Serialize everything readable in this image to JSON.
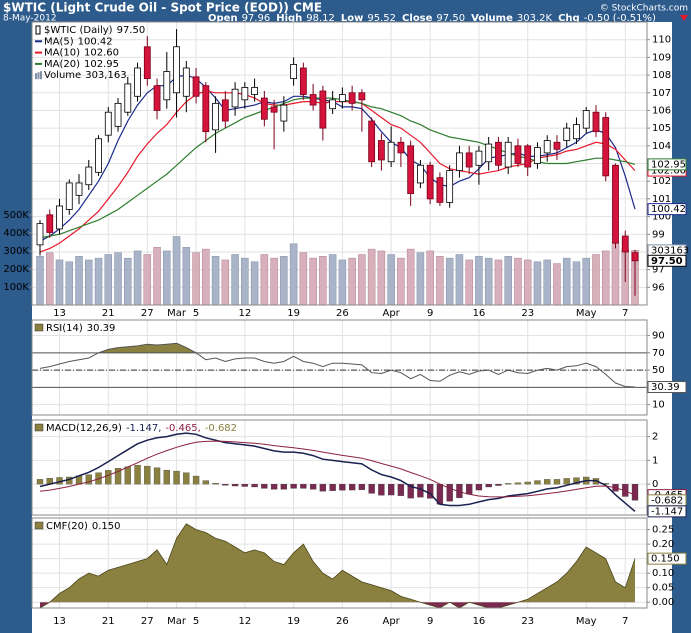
{
  "header": {
    "title": "$WTIC (Light Crude Oil - Spot Price (EOD)) CME",
    "source": "© StockCharts.com",
    "date": "8-May-2012",
    "quote": [
      {
        "label": "Open",
        "value": "97.96"
      },
      {
        "label": "High",
        "value": "98.12"
      },
      {
        "label": "Low",
        "value": "95.52"
      },
      {
        "label": "Close",
        "value": "97.50"
      },
      {
        "label": "Volume",
        "value": "303.2K"
      },
      {
        "label": "Chg",
        "value": "-0.50 (-0.51%)"
      }
    ]
  },
  "chart_data": [
    {
      "type": "candlestick",
      "name": "$WTIC (Daily)",
      "last_label": "97.50",
      "categories": [
        null,
        null,
        "13",
        null,
        null,
        null,
        null,
        "21",
        null,
        null,
        null,
        "27",
        null,
        null,
        "Mar",
        null,
        "5",
        null,
        null,
        null,
        null,
        "12",
        null,
        null,
        null,
        null,
        "19",
        null,
        null,
        null,
        null,
        "26",
        null,
        null,
        null,
        null,
        "Apr",
        null,
        null,
        null,
        "9",
        null,
        null,
        null,
        null,
        "16",
        null,
        null,
        null,
        null,
        "23",
        null,
        null,
        null,
        null,
        null,
        "May",
        null,
        null,
        null,
        "7",
        null
      ],
      "open": [
        98.4,
        100.1,
        99.3,
        100.4,
        101.2,
        101.8,
        102.5,
        104.6,
        105.1,
        105.9,
        106.8,
        109.6,
        107.4,
        106.6,
        107.0,
        106.8,
        107.9,
        107.4,
        104.9,
        106.6,
        106.2,
        106.6,
        106.9,
        106.7,
        106.2,
        105.4,
        107.8,
        108.4,
        106.9,
        107.1,
        106.1,
        106.5,
        107.0,
        107.0,
        105.4,
        104.3,
        103.1,
        104.2,
        104.0,
        101.9,
        102.9,
        102.2,
        100.8,
        102.6,
        103.6,
        102.9,
        103.1,
        104.2,
        102.8,
        104.0,
        104.0,
        103.0,
        103.6,
        104.2,
        104.3,
        104.4,
        105.0,
        105.9,
        105.6,
        102.9,
        98.9,
        97.96
      ],
      "high": [
        99.8,
        100.4,
        101.0,
        102.1,
        102.4,
        103.2,
        104.6,
        106.2,
        106.7,
        107.9,
        108.7,
        110.2,
        107.8,
        109.3,
        110.6,
        108.8,
        108.4,
        107.6,
        106.8,
        107.1,
        107.6,
        107.6,
        107.8,
        107.1,
        106.6,
        106.8,
        109.0,
        108.7,
        107.5,
        107.4,
        107.1,
        107.3,
        107.4,
        107.2,
        105.6,
        104.7,
        105.1,
        104.5,
        104.3,
        103.2,
        103.1,
        102.5,
        102.9,
        104.0,
        104.0,
        104.0,
        104.5,
        104.5,
        104.5,
        104.4,
        104.1,
        104.2,
        104.6,
        104.6,
        105.3,
        105.6,
        106.2,
        106.3,
        105.9,
        103.0,
        99.2,
        98.12
      ],
      "low": [
        97.8,
        98.8,
        99.0,
        100.1,
        100.7,
        101.5,
        102.3,
        104.2,
        104.8,
        105.7,
        106.5,
        107.4,
        105.5,
        106.1,
        105.6,
        105.9,
        106.4,
        104.2,
        103.6,
        105.0,
        105.7,
        106.1,
        106.5,
        105.1,
        103.8,
        104.8,
        107.4,
        106.6,
        106.0,
        104.3,
        105.8,
        106.1,
        106.0,
        104.8,
        102.8,
        102.6,
        102.8,
        102.8,
        100.6,
        101.6,
        100.7,
        100.6,
        100.5,
        102.2,
        102.4,
        101.8,
        102.6,
        102.6,
        102.4,
        102.8,
        102.3,
        102.7,
        103.1,
        103.2,
        103.9,
        104.1,
        104.7,
        104.5,
        102.0,
        98.2,
        96.3,
        95.52
      ],
      "close": [
        99.6,
        99.1,
        100.6,
        101.9,
        101.9,
        102.8,
        104.4,
        105.9,
        106.4,
        107.5,
        108.4,
        107.8,
        106.0,
        108.2,
        109.6,
        108.4,
        106.8,
        104.8,
        106.4,
        105.4,
        107.2,
        107.3,
        107.3,
        105.5,
        105.9,
        106.3,
        108.6,
        106.9,
        106.3,
        105.0,
        106.6,
        106.9,
        106.4,
        106.6,
        103.1,
        103.2,
        104.2,
        103.6,
        101.3,
        102.9,
        101.0,
        100.8,
        102.6,
        103.6,
        102.8,
        103.7,
        104.1,
        102.9,
        104.2,
        103.0,
        102.8,
        103.9,
        104.3,
        103.8,
        105.0,
        105.2,
        106.0,
        104.8,
        102.3,
        98.5,
        98.0,
        97.5
      ],
      "up_color": "#ffffff",
      "down_color": "#d4143c",
      "ylim": [
        95,
        111
      ],
      "yticks": [
        96,
        97,
        98,
        99,
        100,
        101,
        102,
        103,
        104,
        105,
        106,
        107,
        108,
        109,
        110
      ],
      "series": [
        {
          "name": "MA(5)",
          "color": "#1c2a8c",
          "last_label": "100.42",
          "values": [
            98.6,
            98.9,
            99.3,
            99.8,
            100.4,
            101.2,
            102.0,
            103.0,
            104.3,
            105.4,
            106.3,
            107.0,
            107.4,
            107.4,
            107.9,
            108.0,
            107.8,
            107.3,
            106.7,
            106.0,
            106.1,
            106.2,
            106.3,
            106.5,
            106.4,
            106.5,
            106.8,
            106.8,
            106.7,
            106.6,
            106.5,
            106.2,
            106.2,
            106.1,
            105.5,
            104.8,
            104.2,
            103.9,
            103.2,
            102.9,
            102.2,
            101.8,
            101.7,
            102.0,
            102.2,
            102.7,
            103.3,
            103.4,
            103.5,
            103.6,
            103.4,
            103.4,
            103.5,
            103.6,
            103.9,
            104.2,
            104.7,
            104.9,
            104.7,
            103.9,
            102.3,
            100.42
          ]
        },
        {
          "name": "MA(10)",
          "color": "#e8192c",
          "last_label": "102.60",
          "values": [
            98.0,
            98.2,
            98.5,
            98.9,
            99.3,
            99.8,
            100.3,
            101.0,
            101.7,
            102.5,
            103.4,
            104.1,
            104.7,
            105.2,
            105.9,
            106.5,
            106.9,
            107.1,
            107.0,
            107.0,
            107.0,
            106.9,
            106.7,
            106.4,
            106.3,
            106.3,
            106.4,
            106.5,
            106.5,
            106.4,
            106.5,
            106.5,
            106.5,
            106.4,
            106.0,
            105.6,
            105.2,
            105.0,
            104.6,
            104.2,
            103.6,
            103.0,
            102.7,
            102.6,
            102.5,
            102.4,
            102.5,
            102.6,
            102.8,
            102.9,
            103.0,
            103.3,
            103.4,
            103.5,
            103.7,
            103.8,
            104.0,
            104.2,
            104.1,
            103.8,
            103.2,
            102.6
          ]
        },
        {
          "name": "MA(20)",
          "color": "#2e7d2e",
          "last_label": "102.95",
          "values": [
            98.8,
            98.9,
            99.0,
            99.2,
            99.4,
            99.6,
            99.8,
            100.1,
            100.4,
            100.8,
            101.2,
            101.6,
            102.0,
            102.4,
            102.9,
            103.4,
            103.9,
            104.3,
            104.7,
            105.0,
            105.3,
            105.6,
            105.8,
            106.0,
            106.2,
            106.4,
            106.6,
            106.7,
            106.7,
            106.7,
            106.7,
            106.6,
            106.5,
            106.4,
            106.2,
            106.1,
            105.9,
            105.7,
            105.4,
            105.2,
            104.9,
            104.7,
            104.5,
            104.4,
            104.3,
            104.2,
            104.0,
            103.8,
            103.6,
            103.4,
            103.3,
            103.1,
            103.0,
            103.0,
            103.0,
            103.1,
            103.2,
            103.3,
            103.3,
            103.2,
            103.1,
            102.95
          ]
        }
      ],
      "volume": {
        "name": "Volume",
        "legend_label": "303,163",
        "last_label": "303163",
        "up_color": "#aab4c8",
        "down_color": "#d8b0bc",
        "ylim": [
          0,
          1570000
        ],
        "y2ticks": [
          {
            "value": 100000,
            "label": "100K"
          },
          {
            "value": 200000,
            "label": "200K"
          },
          {
            "value": 300000,
            "label": "300K"
          },
          {
            "value": 400000,
            "label": "400K"
          },
          {
            "value": 500000,
            "label": "500K"
          }
        ],
        "values": [
          270000,
          290000,
          250000,
          240000,
          270000,
          250000,
          260000,
          280000,
          290000,
          260000,
          300000,
          280000,
          320000,
          300000,
          380000,
          320000,
          290000,
          310000,
          270000,
          250000,
          280000,
          260000,
          240000,
          280000,
          260000,
          270000,
          340000,
          290000,
          260000,
          270000,
          280000,
          250000,
          260000,
          280000,
          310000,
          300000,
          280000,
          260000,
          310000,
          290000,
          300000,
          270000,
          260000,
          280000,
          250000,
          270000,
          260000,
          250000,
          270000,
          260000,
          250000,
          240000,
          250000,
          230000,
          260000,
          240000,
          260000,
          280000,
          300000,
          350000,
          310000,
          303163
        ]
      }
    },
    {
      "type": "line",
      "title": "RSI(14)",
      "ylim": [
        -2,
        108
      ],
      "yticks": [
        10,
        30,
        50,
        70,
        90
      ],
      "overbought": 70,
      "midline": 50,
      "oversold": 30,
      "fill_color": "#8a8040",
      "series": [
        {
          "color": "#555555",
          "last_label": "30.39",
          "values": [
            52,
            54,
            57,
            60,
            62,
            64,
            70,
            74,
            76,
            77,
            78,
            80,
            79,
            80,
            81,
            76,
            70,
            62,
            64,
            60,
            63,
            64,
            64,
            60,
            58,
            60,
            66,
            60,
            58,
            54,
            58,
            58,
            57,
            56,
            47,
            46,
            50,
            47,
            40,
            45,
            38,
            37,
            44,
            48,
            45,
            49,
            50,
            45,
            50,
            47,
            46,
            50,
            52,
            50,
            54,
            55,
            58,
            54,
            45,
            35,
            31,
            30.39
          ]
        }
      ]
    },
    {
      "type": "macd",
      "title": "MACD(12,26,9)",
      "ylim": [
        -1.3,
        2.7
      ],
      "yticks": [
        -1,
        0,
        1,
        2
      ],
      "series": [
        {
          "color": "#1a2050",
          "legend_label": "-1.147,",
          "last_label": "-1.147",
          "values": [
            -0.1,
            0.0,
            0.1,
            0.2,
            0.35,
            0.5,
            0.7,
            0.95,
            1.2,
            1.45,
            1.7,
            1.85,
            1.95,
            2.0,
            2.1,
            2.15,
            2.1,
            1.95,
            1.85,
            1.75,
            1.7,
            1.65,
            1.6,
            1.5,
            1.4,
            1.35,
            1.35,
            1.3,
            1.2,
            1.05,
            1.0,
            0.95,
            0.9,
            0.85,
            0.6,
            0.4,
            0.3,
            0.15,
            -0.1,
            -0.2,
            -0.4,
            -0.85,
            -0.9,
            -0.9,
            -0.85,
            -0.75,
            -0.65,
            -0.6,
            -0.5,
            -0.45,
            -0.4,
            -0.3,
            -0.2,
            -0.15,
            -0.05,
            0.05,
            0.15,
            0.15,
            -0.05,
            -0.45,
            -0.8,
            -1.147
          ]
        },
        {
          "color": "#8b2040",
          "legend_label": "-0.465,",
          "last_label": "-0.465",
          "values": [
            -0.3,
            -0.25,
            -0.18,
            -0.1,
            0.0,
            0.1,
            0.22,
            0.37,
            0.53,
            0.72,
            0.9,
            1.09,
            1.26,
            1.41,
            1.55,
            1.67,
            1.76,
            1.8,
            1.81,
            1.8,
            1.78,
            1.75,
            1.72,
            1.68,
            1.62,
            1.57,
            1.53,
            1.48,
            1.42,
            1.35,
            1.28,
            1.21,
            1.15,
            1.09,
            0.99,
            0.87,
            0.76,
            0.64,
            0.49,
            0.35,
            0.2,
            0.0,
            -0.18,
            -0.32,
            -0.43,
            -0.5,
            -0.53,
            -0.54,
            -0.53,
            -0.51,
            -0.49,
            -0.45,
            -0.4,
            -0.35,
            -0.29,
            -0.22,
            -0.15,
            -0.09,
            -0.08,
            -0.15,
            -0.28,
            -0.465
          ]
        },
        {
          "type": "bar",
          "color": "#8a8040",
          "negative_color": "#7a2a50",
          "legend_label": "-0.682",
          "last_label": "-0.682",
          "values": [
            0.2,
            0.25,
            0.28,
            0.3,
            0.35,
            0.4,
            0.48,
            0.58,
            0.67,
            0.73,
            0.8,
            0.76,
            0.69,
            0.59,
            0.55,
            0.48,
            0.34,
            0.15,
            0.04,
            -0.05,
            -0.08,
            -0.1,
            -0.12,
            -0.18,
            -0.22,
            -0.22,
            -0.18,
            -0.18,
            -0.22,
            -0.3,
            -0.28,
            -0.26,
            -0.25,
            -0.24,
            -0.39,
            -0.47,
            -0.46,
            -0.49,
            -0.59,
            -0.55,
            -0.6,
            -0.85,
            -0.72,
            -0.58,
            -0.42,
            -0.25,
            -0.12,
            -0.06,
            0.03,
            0.06,
            0.09,
            0.15,
            0.2,
            0.2,
            0.24,
            0.27,
            0.3,
            0.24,
            0.03,
            -0.3,
            -0.52,
            -0.682
          ]
        }
      ]
    },
    {
      "type": "area",
      "title": "CMF(20)",
      "color": "#8a8040",
      "negative_color": "#7a2a50",
      "last_label": "0.150",
      "ylim": [
        -0.02,
        0.29
      ],
      "yticks": [
        {
          "value": 0,
          "label": "0.00"
        },
        0.05,
        {
          "value": 0.1,
          "label": "0.10"
        },
        0.15,
        {
          "value": 0.2,
          "label": "0.20"
        },
        0.25
      ],
      "categories": [
        null,
        null,
        "13",
        null,
        null,
        null,
        null,
        "21",
        null,
        null,
        null,
        "27",
        null,
        null,
        "Mar",
        null,
        "5",
        null,
        null,
        null,
        null,
        "12",
        null,
        null,
        null,
        null,
        "19",
        null,
        null,
        null,
        null,
        "26",
        null,
        null,
        null,
        null,
        "Apr",
        null,
        null,
        null,
        "9",
        null,
        null,
        null,
        null,
        "16",
        null,
        null,
        null,
        null,
        "23",
        null,
        null,
        null,
        null,
        null,
        "May",
        null,
        null,
        null,
        "7",
        null
      ],
      "values": [
        -0.02,
        0.0,
        0.03,
        0.05,
        0.08,
        0.1,
        0.09,
        0.11,
        0.12,
        0.13,
        0.14,
        0.15,
        0.18,
        0.13,
        0.22,
        0.27,
        0.25,
        0.24,
        0.22,
        0.21,
        0.19,
        0.17,
        0.18,
        0.17,
        0.14,
        0.13,
        0.17,
        0.2,
        0.14,
        0.1,
        0.08,
        0.11,
        0.09,
        0.07,
        0.06,
        0.05,
        0.04,
        0.02,
        0.01,
        0.0,
        -0.01,
        -0.02,
        0.0,
        -0.02,
        0.0,
        -0.01,
        -0.02,
        -0.02,
        -0.01,
        0.0,
        0.01,
        0.03,
        0.05,
        0.07,
        0.1,
        0.14,
        0.19,
        0.17,
        0.15,
        0.07,
        0.05,
        0.15
      ]
    }
  ]
}
